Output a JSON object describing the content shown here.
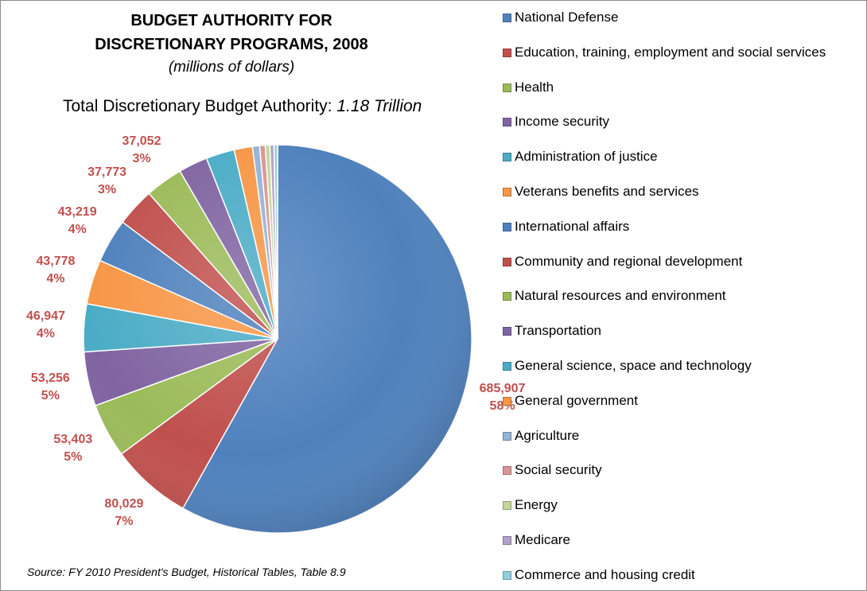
{
  "chart_data": {
    "type": "pie",
    "title_line1": "BUDGET AUTHORITY FOR",
    "title_line2": "DISCRETIONARY PROGRAMS, 2008",
    "subtitle": "(millions of dollars)",
    "total_label": "Total Discretionary Budget Authority:",
    "total_value": "1.18 Trillion",
    "source": "Source:  FY 2010 President's Budget, Historical Tables, Table 8.9",
    "legend_position": "right",
    "slices": [
      {
        "name": "National Defense",
        "value": 685907,
        "value_label": "685,907",
        "percent_label": "58%",
        "color": "#4f81bd"
      },
      {
        "name": "Education, training, employment and social services",
        "value": 80029,
        "value_label": "80,029",
        "percent_label": "7%",
        "color": "#c0504d"
      },
      {
        "name": "Health",
        "value": 53403,
        "value_label": "53,403",
        "percent_label": "5%",
        "color": "#9bbb59"
      },
      {
        "name": "Income security",
        "value": 53256,
        "value_label": "53,256",
        "percent_label": "5%",
        "color": "#8064a2"
      },
      {
        "name": "Administration of justice",
        "value": 46947,
        "value_label": "46,947",
        "percent_label": "4%",
        "color": "#4bacc6"
      },
      {
        "name": "Veterans benefits and services",
        "value": 43778,
        "value_label": "43,778",
        "percent_label": "4%",
        "color": "#f79646"
      },
      {
        "name": "International affairs",
        "value": 43219,
        "value_label": "43,219",
        "percent_label": "4%",
        "color": "#4f81bd"
      },
      {
        "name": "Community and regional development",
        "value": 37773,
        "value_label": "37,773",
        "percent_label": "3%",
        "color": "#c0504d"
      },
      {
        "name": "Natural resources and environment",
        "value": 37052,
        "value_label": "37,052",
        "percent_label": "3%",
        "color": "#9bbb59"
      },
      {
        "name": "Transportation",
        "value": 28500,
        "color": "#8064a2"
      },
      {
        "name": "General science, space and technology",
        "value": 28000,
        "color": "#4bacc6"
      },
      {
        "name": "General government",
        "value": 18000,
        "color": "#f79646"
      },
      {
        "name": "Agriculture",
        "value": 7000,
        "color": "#95b3d7"
      },
      {
        "name": "Social security",
        "value": 5500,
        "color": "#d99694"
      },
      {
        "name": "Energy",
        "value": 4500,
        "color": "#c3d69b"
      },
      {
        "name": "Medicare",
        "value": 4000,
        "color": "#b2a2c7"
      },
      {
        "name": "Commerce and housing credit",
        "value": 3500,
        "color": "#93cddd"
      }
    ]
  }
}
